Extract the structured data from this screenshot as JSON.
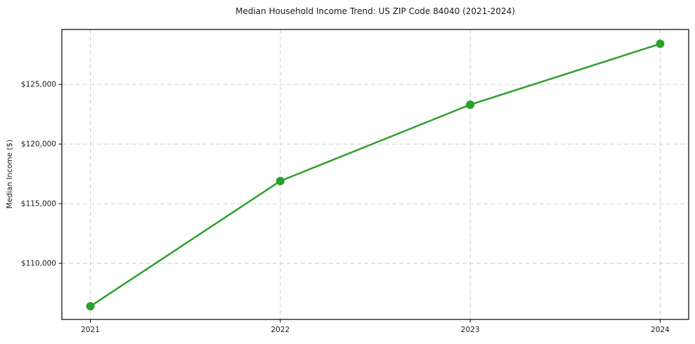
{
  "chart_data": {
    "type": "line",
    "title": "Median Household Income Trend: US ZIP Code 84040 (2021-2024)",
    "xlabel": "",
    "ylabel": "Median Income ($)",
    "categories": [
      "2021",
      "2022",
      "2023",
      "2024"
    ],
    "values": [
      106400,
      116900,
      123300,
      128400
    ],
    "series": [
      {
        "name": "Median Income",
        "values": [
          106400,
          116900,
          123300,
          128400
        ]
      }
    ],
    "yticks": [
      {
        "value": 110000,
        "label": "$110,000"
      },
      {
        "value": 115000,
        "label": "$115,000"
      },
      {
        "value": 120000,
        "label": "$120,000"
      },
      {
        "value": 125000,
        "label": "$125,000"
      }
    ],
    "xlim": [
      -0.15,
      3.15
    ],
    "ylim": [
      105300,
      129600
    ],
    "grid": true,
    "grid_style": "dashed",
    "legend": "none",
    "marker": "circle",
    "colors": {
      "line": "#2ca02c",
      "marker": "#2ca02c",
      "grid": "#c9c9c9",
      "axis": "#000000",
      "text": "#1a1a1a",
      "background": "#ffffff"
    }
  }
}
